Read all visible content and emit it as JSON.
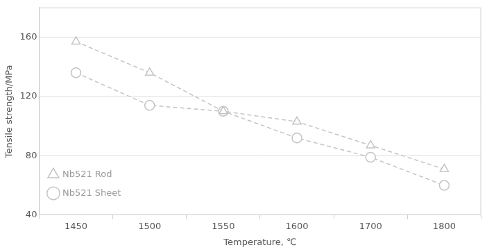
{
  "chart_data": {
    "type": "line",
    "x_label": "Temperature, ℃",
    "y_label": "Tensile strength/MPa",
    "categories": [
      "1450",
      "1500",
      "1550",
      "1600",
      "1700",
      "1800"
    ],
    "series": [
      {
        "name": "Nb521 Rod",
        "color": "#c4c4c4",
        "marker": "triangle",
        "line_style": "dashed",
        "values": [
          157,
          136,
          110,
          103,
          87,
          71
        ]
      },
      {
        "name": "Nb521 Sheet",
        "color": "#c4c4c4",
        "marker": "circle",
        "line_style": "dashed",
        "values": [
          136,
          114,
          110,
          92,
          79,
          60
        ]
      }
    ],
    "ylim": [
      40,
      180
    ],
    "yticks": [
      40,
      80,
      120,
      160
    ],
    "grid": true,
    "legend": "upper right"
  }
}
